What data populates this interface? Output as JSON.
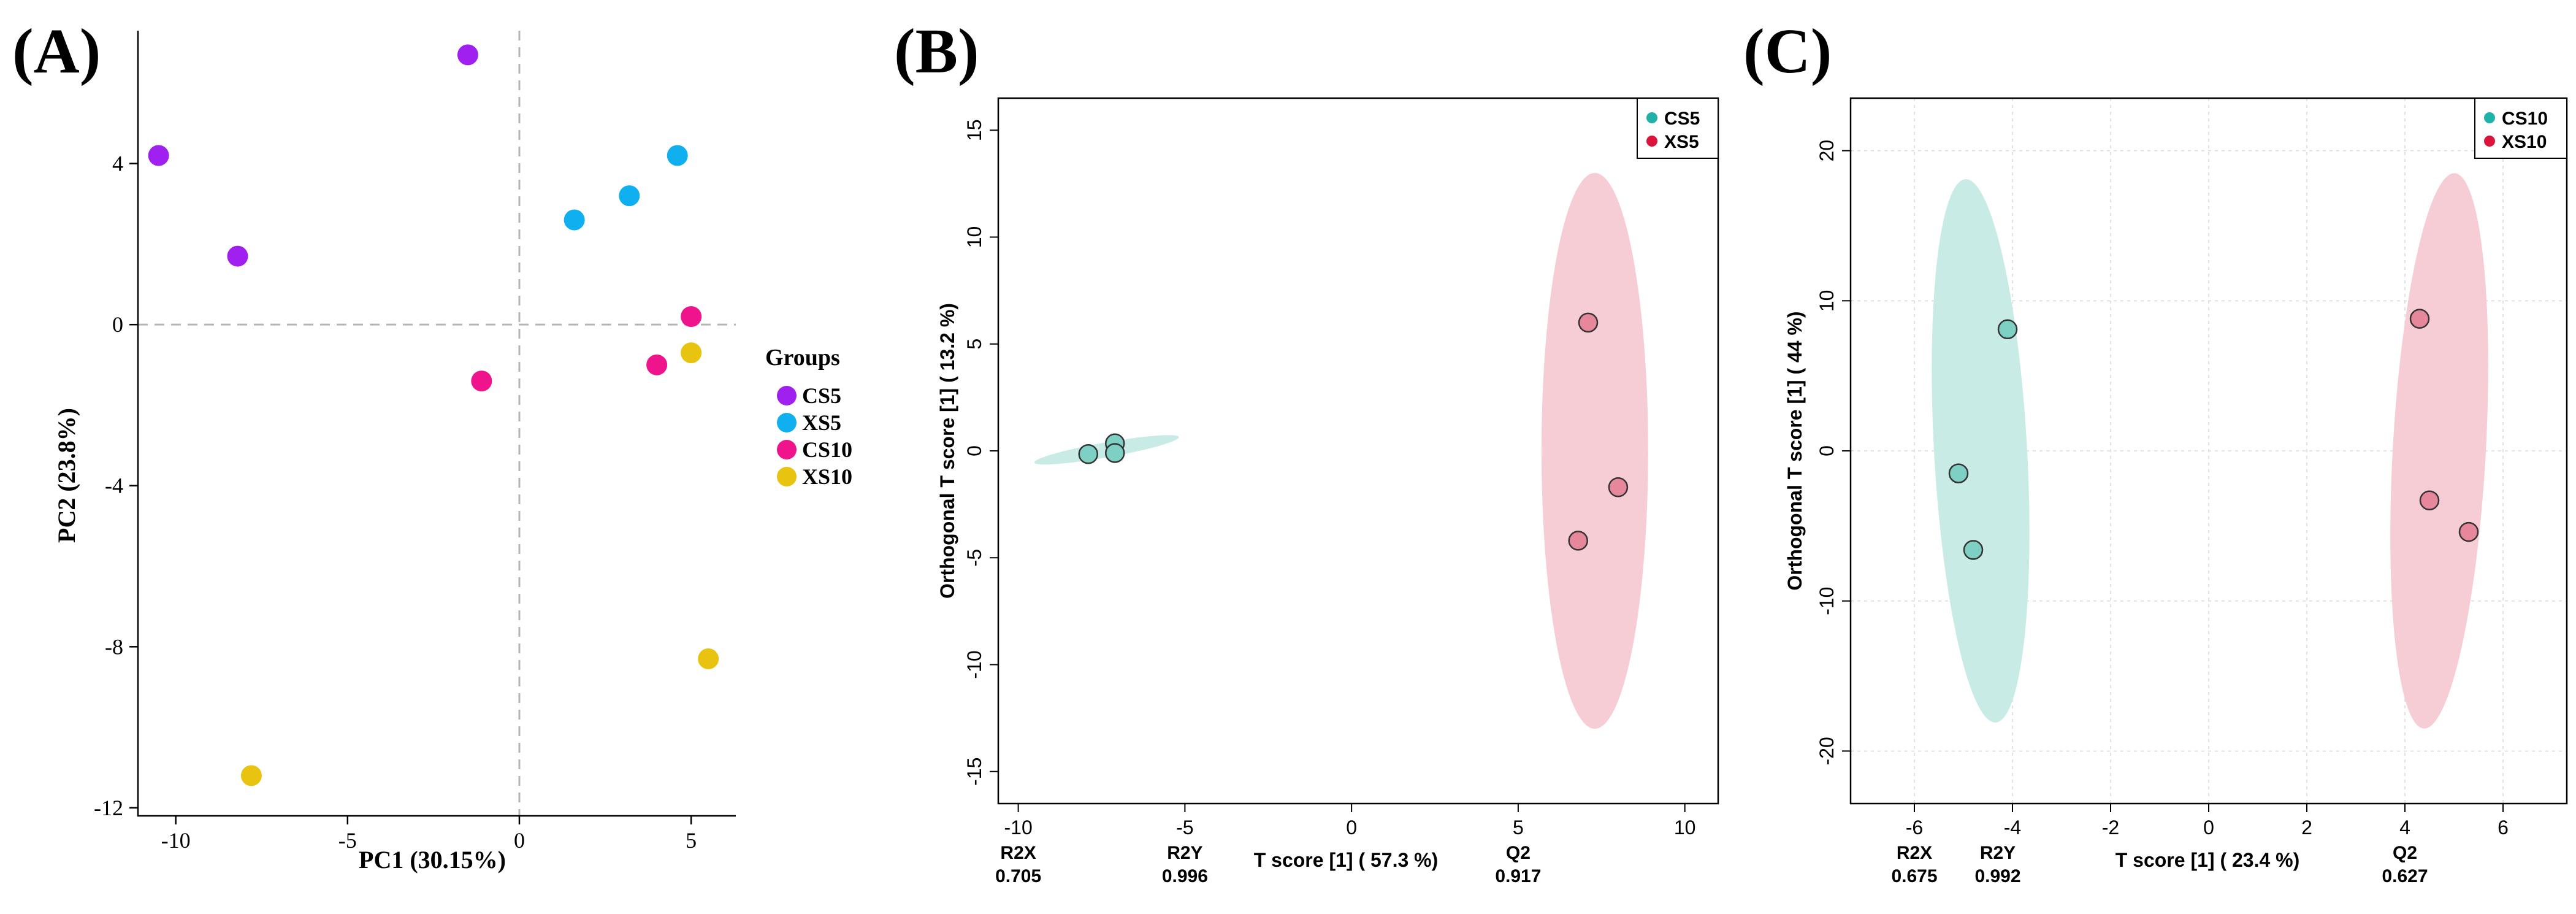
{
  "chart_data": [
    {
      "type": "scatter",
      "panel_label": "(A)",
      "xlabel": "PC1 (30.15%)",
      "ylabel": "PC2 (23.8%)",
      "xlim": [
        -11.1,
        6.3
      ],
      "ylim": [
        -12.2,
        7.3
      ],
      "xticks": [
        -10,
        -5,
        0,
        5
      ],
      "yticks": [
        -12,
        -8,
        -4,
        0,
        4
      ],
      "x_tick_labels": [
        "-10",
        "-5",
        "0",
        "5"
      ],
      "y_tick_labels": [
        "-12",
        "-8",
        "-4",
        "0",
        "4"
      ],
      "reference_lines": {
        "x": 0,
        "y": 0
      },
      "legend": {
        "title": "Groups",
        "placement": "right"
      },
      "series": [
        {
          "name": "CS5",
          "color": "#a020f0",
          "points": [
            [
              -10.5,
              4.2
            ],
            [
              -8.2,
              1.7
            ],
            [
              -1.5,
              6.7
            ]
          ]
        },
        {
          "name": "XS5",
          "color": "#10b0f0",
          "points": [
            [
              1.6,
              2.6
            ],
            [
              3.2,
              3.2
            ],
            [
              4.6,
              4.2
            ]
          ]
        },
        {
          "name": "CS10",
          "color": "#f0148c",
          "points": [
            [
              -1.1,
              -1.4
            ],
            [
              4.0,
              -1.0
            ],
            [
              5.0,
              0.2
            ]
          ]
        },
        {
          "name": "XS10",
          "color": "#e8c410",
          "points": [
            [
              -7.8,
              -11.2
            ],
            [
              5.0,
              -0.7
            ],
            [
              5.5,
              -8.3
            ]
          ]
        }
      ]
    },
    {
      "type": "scatter",
      "panel_label": "(B)",
      "xlabel": "T score [1] ( 57.3 %)",
      "ylabel": "Orthogonal T score [1] ( 13.2 %)",
      "xlim": [
        -10.6,
        11.0
      ],
      "ylim": [
        -16.5,
        16.5
      ],
      "xticks": [
        -10,
        -5,
        0,
        5,
        10
      ],
      "yticks": [
        -15,
        -10,
        -5,
        0,
        5,
        10,
        15
      ],
      "x_tick_labels": [
        "-10",
        "-5",
        "0",
        "5",
        "10"
      ],
      "y_tick_labels": [
        "-15",
        "-10",
        "-5",
        "0",
        "5",
        "10",
        "15"
      ],
      "stats": [
        {
          "label": "R2X",
          "value": "0.705",
          "x": -10
        },
        {
          "label": "R2Y",
          "value": "0.996",
          "x": -5
        },
        {
          "label": "Q2",
          "value": "0.917",
          "x": 5
        }
      ],
      "legend": {
        "placement": "top-right"
      },
      "series": [
        {
          "name": "CS5",
          "color": "#20b2aa",
          "ellipse_fill": "#c8ebe6",
          "points": [
            [
              -7.9,
              -0.15
            ],
            [
              -7.1,
              0.35
            ],
            [
              -7.1,
              -0.1
            ]
          ],
          "ellipse": {
            "cx": -7.35,
            "cy": 0.05,
            "rx": 2.2,
            "ry": 0.35,
            "angle_deg": 10
          }
        },
        {
          "name": "XS5",
          "color": "#dc143c",
          "ellipse_fill": "#f6cdd5",
          "points": [
            [
              7.1,
              6.0
            ],
            [
              8.0,
              -1.7
            ],
            [
              6.8,
              -4.2
            ]
          ],
          "ellipse": {
            "cx": 7.3,
            "cy": 0.0,
            "rx": 1.6,
            "ry": 13.0,
            "angle_deg": 0
          }
        }
      ]
    },
    {
      "type": "scatter",
      "panel_label": "(C)",
      "xlabel": "T score [1] ( 23.4 %)",
      "ylabel": "Orthogonal T score [1] ( 44 %)",
      "xlim": [
        -7.3,
        7.3
      ],
      "ylim": [
        -23.5,
        23.5
      ],
      "xticks": [
        -6,
        -4,
        -2,
        0,
        2,
        4,
        6
      ],
      "yticks": [
        -20,
        -10,
        0,
        10,
        20
      ],
      "x_tick_labels": [
        "-6",
        "-4",
        "-2",
        "0",
        "2",
        "4",
        "6"
      ],
      "y_tick_labels": [
        "-20",
        "-10",
        "0",
        "10",
        "20"
      ],
      "grid": true,
      "stats": [
        {
          "label": "R2X",
          "value": "0.675",
          "x": -6
        },
        {
          "label": "R2Y",
          "value": "0.992",
          "x": -4.3
        },
        {
          "label": "Q2",
          "value": "0.627",
          "x": 4
        }
      ],
      "legend": {
        "placement": "top-right"
      },
      "series": [
        {
          "name": "CS10",
          "color": "#20b2aa",
          "ellipse_fill": "#c8ebe6",
          "points": [
            [
              -4.1,
              8.1
            ],
            [
              -5.1,
              -1.5
            ],
            [
              -4.8,
              -6.6
            ]
          ],
          "ellipse": {
            "cx": -4.65,
            "cy": 0.0,
            "rx": 0.95,
            "ry": 18.1,
            "angle_deg": 0,
            "shear": 0.054
          }
        },
        {
          "name": "XS10",
          "color": "#dc143c",
          "ellipse_fill": "#f6cdd5",
          "points": [
            [
              4.3,
              8.8
            ],
            [
              4.5,
              -3.3
            ],
            [
              5.3,
              -5.4
            ]
          ],
          "ellipse": {
            "cx": 4.7,
            "cy": 0.0,
            "rx": 0.95,
            "ry": 18.5,
            "angle_deg": 0,
            "shear": -0.054
          }
        }
      ]
    }
  ]
}
